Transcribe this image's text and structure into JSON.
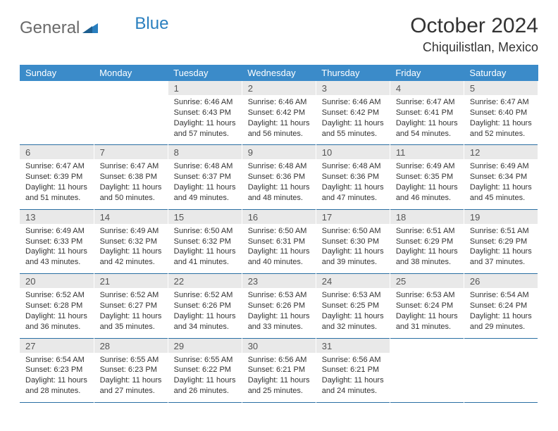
{
  "logo": {
    "part1": "General",
    "part2": "Blue"
  },
  "title": "October 2024",
  "location": "Chiquilistlan, Mexico",
  "colors": {
    "header_bg": "#3b8bc9",
    "header_text": "#ffffff",
    "daynum_bg": "#e9e9e9",
    "week_border": "#2a6fa3",
    "logo_gray": "#6a6a6a",
    "logo_blue": "#2a7fbf"
  },
  "day_headers": [
    "Sunday",
    "Monday",
    "Tuesday",
    "Wednesday",
    "Thursday",
    "Friday",
    "Saturday"
  ],
  "weeks": [
    [
      {
        "empty": true
      },
      {
        "empty": true
      },
      {
        "num": "1",
        "sunrise": "Sunrise: 6:46 AM",
        "sunset": "Sunset: 6:43 PM",
        "day1": "Daylight: 11 hours",
        "day2": "and 57 minutes."
      },
      {
        "num": "2",
        "sunrise": "Sunrise: 6:46 AM",
        "sunset": "Sunset: 6:42 PM",
        "day1": "Daylight: 11 hours",
        "day2": "and 56 minutes."
      },
      {
        "num": "3",
        "sunrise": "Sunrise: 6:46 AM",
        "sunset": "Sunset: 6:42 PM",
        "day1": "Daylight: 11 hours",
        "day2": "and 55 minutes."
      },
      {
        "num": "4",
        "sunrise": "Sunrise: 6:47 AM",
        "sunset": "Sunset: 6:41 PM",
        "day1": "Daylight: 11 hours",
        "day2": "and 54 minutes."
      },
      {
        "num": "5",
        "sunrise": "Sunrise: 6:47 AM",
        "sunset": "Sunset: 6:40 PM",
        "day1": "Daylight: 11 hours",
        "day2": "and 52 minutes."
      }
    ],
    [
      {
        "num": "6",
        "sunrise": "Sunrise: 6:47 AM",
        "sunset": "Sunset: 6:39 PM",
        "day1": "Daylight: 11 hours",
        "day2": "and 51 minutes."
      },
      {
        "num": "7",
        "sunrise": "Sunrise: 6:47 AM",
        "sunset": "Sunset: 6:38 PM",
        "day1": "Daylight: 11 hours",
        "day2": "and 50 minutes."
      },
      {
        "num": "8",
        "sunrise": "Sunrise: 6:48 AM",
        "sunset": "Sunset: 6:37 PM",
        "day1": "Daylight: 11 hours",
        "day2": "and 49 minutes."
      },
      {
        "num": "9",
        "sunrise": "Sunrise: 6:48 AM",
        "sunset": "Sunset: 6:36 PM",
        "day1": "Daylight: 11 hours",
        "day2": "and 48 minutes."
      },
      {
        "num": "10",
        "sunrise": "Sunrise: 6:48 AM",
        "sunset": "Sunset: 6:36 PM",
        "day1": "Daylight: 11 hours",
        "day2": "and 47 minutes."
      },
      {
        "num": "11",
        "sunrise": "Sunrise: 6:49 AM",
        "sunset": "Sunset: 6:35 PM",
        "day1": "Daylight: 11 hours",
        "day2": "and 46 minutes."
      },
      {
        "num": "12",
        "sunrise": "Sunrise: 6:49 AM",
        "sunset": "Sunset: 6:34 PM",
        "day1": "Daylight: 11 hours",
        "day2": "and 45 minutes."
      }
    ],
    [
      {
        "num": "13",
        "sunrise": "Sunrise: 6:49 AM",
        "sunset": "Sunset: 6:33 PM",
        "day1": "Daylight: 11 hours",
        "day2": "and 43 minutes."
      },
      {
        "num": "14",
        "sunrise": "Sunrise: 6:49 AM",
        "sunset": "Sunset: 6:32 PM",
        "day1": "Daylight: 11 hours",
        "day2": "and 42 minutes."
      },
      {
        "num": "15",
        "sunrise": "Sunrise: 6:50 AM",
        "sunset": "Sunset: 6:32 PM",
        "day1": "Daylight: 11 hours",
        "day2": "and 41 minutes."
      },
      {
        "num": "16",
        "sunrise": "Sunrise: 6:50 AM",
        "sunset": "Sunset: 6:31 PM",
        "day1": "Daylight: 11 hours",
        "day2": "and 40 minutes."
      },
      {
        "num": "17",
        "sunrise": "Sunrise: 6:50 AM",
        "sunset": "Sunset: 6:30 PM",
        "day1": "Daylight: 11 hours",
        "day2": "and 39 minutes."
      },
      {
        "num": "18",
        "sunrise": "Sunrise: 6:51 AM",
        "sunset": "Sunset: 6:29 PM",
        "day1": "Daylight: 11 hours",
        "day2": "and 38 minutes."
      },
      {
        "num": "19",
        "sunrise": "Sunrise: 6:51 AM",
        "sunset": "Sunset: 6:29 PM",
        "day1": "Daylight: 11 hours",
        "day2": "and 37 minutes."
      }
    ],
    [
      {
        "num": "20",
        "sunrise": "Sunrise: 6:52 AM",
        "sunset": "Sunset: 6:28 PM",
        "day1": "Daylight: 11 hours",
        "day2": "and 36 minutes."
      },
      {
        "num": "21",
        "sunrise": "Sunrise: 6:52 AM",
        "sunset": "Sunset: 6:27 PM",
        "day1": "Daylight: 11 hours",
        "day2": "and 35 minutes."
      },
      {
        "num": "22",
        "sunrise": "Sunrise: 6:52 AM",
        "sunset": "Sunset: 6:26 PM",
        "day1": "Daylight: 11 hours",
        "day2": "and 34 minutes."
      },
      {
        "num": "23",
        "sunrise": "Sunrise: 6:53 AM",
        "sunset": "Sunset: 6:26 PM",
        "day1": "Daylight: 11 hours",
        "day2": "and 33 minutes."
      },
      {
        "num": "24",
        "sunrise": "Sunrise: 6:53 AM",
        "sunset": "Sunset: 6:25 PM",
        "day1": "Daylight: 11 hours",
        "day2": "and 32 minutes."
      },
      {
        "num": "25",
        "sunrise": "Sunrise: 6:53 AM",
        "sunset": "Sunset: 6:24 PM",
        "day1": "Daylight: 11 hours",
        "day2": "and 31 minutes."
      },
      {
        "num": "26",
        "sunrise": "Sunrise: 6:54 AM",
        "sunset": "Sunset: 6:24 PM",
        "day1": "Daylight: 11 hours",
        "day2": "and 29 minutes."
      }
    ],
    [
      {
        "num": "27",
        "sunrise": "Sunrise: 6:54 AM",
        "sunset": "Sunset: 6:23 PM",
        "day1": "Daylight: 11 hours",
        "day2": "and 28 minutes."
      },
      {
        "num": "28",
        "sunrise": "Sunrise: 6:55 AM",
        "sunset": "Sunset: 6:23 PM",
        "day1": "Daylight: 11 hours",
        "day2": "and 27 minutes."
      },
      {
        "num": "29",
        "sunrise": "Sunrise: 6:55 AM",
        "sunset": "Sunset: 6:22 PM",
        "day1": "Daylight: 11 hours",
        "day2": "and 26 minutes."
      },
      {
        "num": "30",
        "sunrise": "Sunrise: 6:56 AM",
        "sunset": "Sunset: 6:21 PM",
        "day1": "Daylight: 11 hours",
        "day2": "and 25 minutes."
      },
      {
        "num": "31",
        "sunrise": "Sunrise: 6:56 AM",
        "sunset": "Sunset: 6:21 PM",
        "day1": "Daylight: 11 hours",
        "day2": "and 24 minutes."
      },
      {
        "empty": true
      },
      {
        "empty": true
      }
    ]
  ]
}
